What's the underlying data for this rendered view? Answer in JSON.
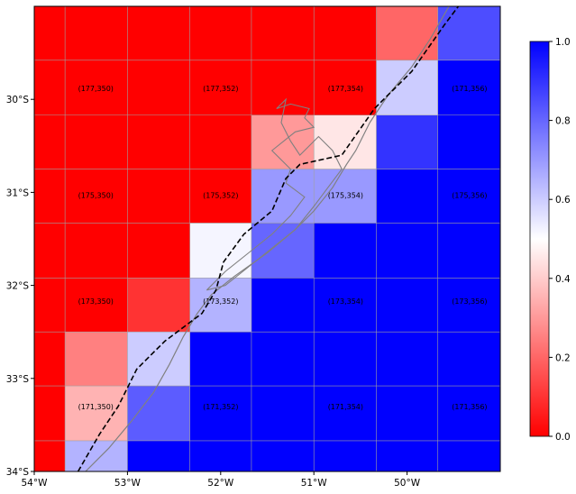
{
  "map": {
    "x_ticks": [
      "54°W",
      "53°W",
      "52°W",
      "51°W",
      "50°W"
    ],
    "y_ticks": [
      "30°S",
      "31°S",
      "32°S",
      "33°S",
      "34°S"
    ],
    "lon_range": [
      -54.0,
      -49.0
    ],
    "lat_range": [
      -34.0,
      -29.0
    ],
    "grid_lon_edges": [
      -54.0,
      -53.67,
      -53.0,
      -52.33,
      -51.67,
      -51.0,
      -50.33,
      -49.67,
      -49.0
    ],
    "grid_lat_edges": [
      -29.0,
      -29.58,
      -30.17,
      -30.75,
      -31.33,
      -31.92,
      -32.5,
      -33.08,
      -33.67,
      -34.0
    ],
    "cell_values": [
      [
        0.0,
        0.0,
        0.0,
        0.0,
        0.0,
        0.0,
        0.2,
        0.85
      ],
      [
        0.0,
        0.0,
        0.0,
        0.0,
        0.0,
        0.0,
        0.6,
        1.0
      ],
      [
        0.0,
        0.0,
        0.0,
        0.0,
        0.3,
        0.45,
        0.9,
        1.0
      ],
      [
        0.0,
        0.0,
        0.0,
        0.0,
        0.7,
        0.7,
        1.0,
        1.0
      ],
      [
        0.0,
        0.0,
        0.0,
        0.52,
        0.8,
        1.0,
        1.0,
        1.0
      ],
      [
        0.0,
        0.0,
        0.1,
        0.65,
        1.0,
        1.0,
        1.0,
        1.0
      ],
      [
        0.0,
        0.25,
        0.6,
        1.0,
        1.0,
        1.0,
        1.0,
        1.0
      ],
      [
        0.0,
        0.35,
        0.82,
        1.0,
        1.0,
        1.0,
        1.0,
        1.0
      ],
      [
        0.0,
        0.65,
        1.0,
        1.0,
        1.0,
        1.0,
        1.0,
        1.0
      ]
    ],
    "labels": [
      {
        "text": "(177,350)",
        "lon": -53.34,
        "lat": -29.88
      },
      {
        "text": "(177,352)",
        "lon": -52.0,
        "lat": -29.88
      },
      {
        "text": "(177,354)",
        "lon": -50.66,
        "lat": -29.88
      },
      {
        "text": "(171,356)",
        "lon": -49.33,
        "lat": -29.88
      },
      {
        "text": "(175,350)",
        "lon": -53.34,
        "lat": -31.03
      },
      {
        "text": "(175,352)",
        "lon": -52.0,
        "lat": -31.03
      },
      {
        "text": "(175,354)",
        "lon": -50.66,
        "lat": -31.03
      },
      {
        "text": "(175,356)",
        "lon": -49.33,
        "lat": -31.03
      },
      {
        "text": "(173,350)",
        "lon": -53.34,
        "lat": -32.17
      },
      {
        "text": "(173,352)",
        "lon": -52.0,
        "lat": -32.17
      },
      {
        "text": "(173,354)",
        "lon": -50.66,
        "lat": -32.17
      },
      {
        "text": "(173,356)",
        "lon": -49.33,
        "lat": -32.17
      },
      {
        "text": "(171,350)",
        "lon": -53.34,
        "lat": -33.3
      },
      {
        "text": "(171,352)",
        "lon": -52.0,
        "lat": -33.3
      },
      {
        "text": "(171,354)",
        "lon": -50.66,
        "lat": -33.3
      },
      {
        "text": "(171,356)",
        "lon": -49.33,
        "lat": -33.3
      }
    ],
    "dashed_line": [
      [
        -53.53,
        -34.0
      ],
      [
        -53.3,
        -33.6
      ],
      [
        -53.1,
        -33.3
      ],
      [
        -52.9,
        -32.9
      ],
      [
        -52.6,
        -32.6
      ],
      [
        -52.2,
        -32.3
      ],
      [
        -52.05,
        -32.05
      ],
      [
        -51.97,
        -31.75
      ],
      [
        -51.75,
        -31.45
      ],
      [
        -51.45,
        -31.2
      ],
      [
        -51.3,
        -30.85
      ],
      [
        -51.15,
        -30.7
      ],
      [
        -50.7,
        -30.6
      ],
      [
        -50.35,
        -30.1
      ],
      [
        -49.95,
        -29.7
      ],
      [
        -49.6,
        -29.2
      ],
      [
        -49.45,
        -29.0
      ]
    ],
    "coastline": [
      [
        -53.45,
        -34.0
      ],
      [
        -53.2,
        -33.75
      ],
      [
        -52.95,
        -33.45
      ],
      [
        -52.72,
        -33.15
      ],
      [
        -52.55,
        -32.85
      ],
      [
        -52.4,
        -32.55
      ],
      [
        -52.25,
        -32.3
      ],
      [
        -52.1,
        -32.1
      ],
      [
        -51.85,
        -31.9
      ],
      [
        -51.5,
        -31.65
      ],
      [
        -51.2,
        -31.4
      ],
      [
        -51.0,
        -31.2
      ],
      [
        -50.8,
        -30.95
      ],
      [
        -50.65,
        -30.7
      ],
      [
        -50.55,
        -30.55
      ],
      [
        -50.4,
        -30.25
      ],
      [
        -50.2,
        -29.95
      ],
      [
        -49.95,
        -29.65
      ],
      [
        -49.75,
        -29.35
      ],
      [
        -49.55,
        -29.0
      ]
    ],
    "lagoon": [
      [
        -52.15,
        -32.05
      ],
      [
        -51.95,
        -31.85
      ],
      [
        -51.7,
        -31.65
      ],
      [
        -51.45,
        -31.45
      ],
      [
        -51.25,
        -31.25
      ],
      [
        -51.1,
        -31.05
      ],
      [
        -51.3,
        -30.9
      ],
      [
        -51.25,
        -30.75
      ],
      [
        -51.45,
        -30.55
      ],
      [
        -51.2,
        -30.35
      ],
      [
        -51.0,
        -30.3
      ],
      [
        -51.1,
        -30.2
      ],
      [
        -51.05,
        -30.1
      ],
      [
        -51.25,
        -30.05
      ],
      [
        -51.4,
        -30.1
      ],
      [
        -51.3,
        -30.0
      ],
      [
        -51.35,
        -30.25
      ],
      [
        -51.25,
        -30.45
      ],
      [
        -51.15,
        -30.6
      ],
      [
        -50.95,
        -30.4
      ],
      [
        -50.8,
        -30.55
      ],
      [
        -50.7,
        -30.75
      ],
      [
        -50.85,
        -30.95
      ],
      [
        -51.0,
        -31.15
      ],
      [
        -51.2,
        -31.4
      ],
      [
        -51.45,
        -31.6
      ],
      [
        -51.7,
        -31.8
      ],
      [
        -51.95,
        -32.0
      ],
      [
        -52.15,
        -32.05
      ]
    ],
    "colors": {
      "low": "#ff0000",
      "mid": "#ffffff",
      "high": "#0000ff",
      "dashed_line": "#000000",
      "coastline": "#808080",
      "gridline": "#a0a0a0"
    }
  },
  "colorbar": {
    "ticks": [
      "0.0",
      "0.2",
      "0.4",
      "0.6",
      "0.8",
      "1.0"
    ],
    "range": [
      0,
      1
    ]
  }
}
